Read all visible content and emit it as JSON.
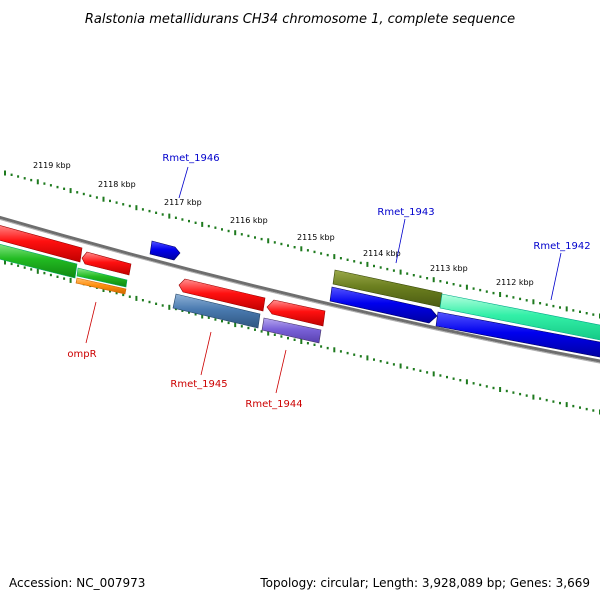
{
  "title": "Ralstonia metallidurans CH34 chromosome 1, complete sequence",
  "footer": {
    "accession": "Accession: NC_007973",
    "summary": "Topology: circular; Length: 3,928,089 bp; Genes: 3,669"
  },
  "ticks": [
    {
      "label": "2119 kbp"
    },
    {
      "label": "2118 kbp"
    },
    {
      "label": "2117 kbp"
    },
    {
      "label": "2116 kbp"
    },
    {
      "label": "2115 kbp"
    },
    {
      "label": "2114 kbp"
    },
    {
      "label": "2113 kbp"
    },
    {
      "label": "2112 kbp"
    }
  ],
  "gene_labels": [
    {
      "name": "Rmet_1946",
      "color": "#0000cc"
    },
    {
      "name": "Rmet_1943",
      "color": "#0000cc"
    },
    {
      "name": "Rmet_1942",
      "color": "#0000cc"
    },
    {
      "name": "ompR",
      "color": "#cc0000"
    },
    {
      "name": "Rmet_1945",
      "color": "#cc0000"
    },
    {
      "name": "Rmet_1944",
      "color": "#cc0000"
    }
  ],
  "colors": {
    "backbone": "#808080",
    "tick_marks": "#1e7a1e",
    "forward_label": "#0000cc",
    "reverse_label": "#cc0000"
  }
}
